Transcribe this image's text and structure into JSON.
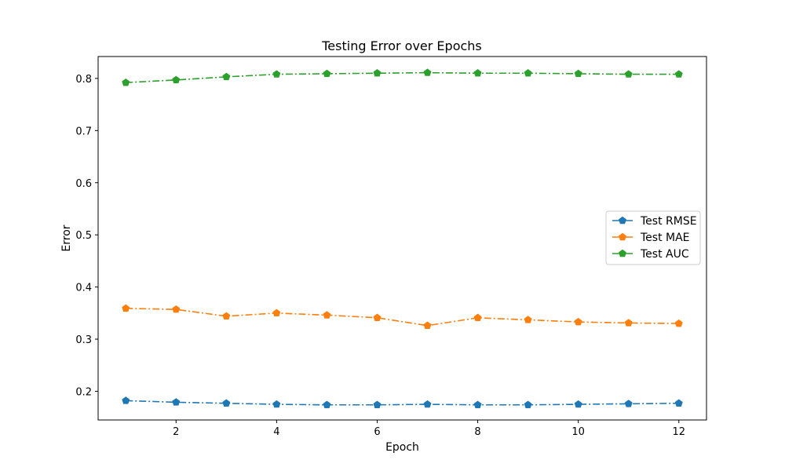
{
  "chart_data": {
    "type": "line",
    "title": "Testing Error over Epochs",
    "xlabel": "Epoch",
    "ylabel": "Error",
    "x": [
      1,
      2,
      3,
      4,
      5,
      6,
      7,
      8,
      9,
      10,
      11,
      12
    ],
    "xlim": [
      0.45,
      12.55
    ],
    "ylim": [
      0.145,
      0.842
    ],
    "x_ticks": [
      2,
      4,
      6,
      8,
      10,
      12
    ],
    "y_ticks": [
      0.2,
      0.3,
      0.4,
      0.5,
      0.6,
      0.7,
      0.8
    ],
    "grid": false,
    "legend_position": "center-right",
    "series": [
      {
        "name": "Test RMSE",
        "color": "#1f77b4",
        "marker": "pentagon",
        "values": [
          0.182,
          0.179,
          0.177,
          0.175,
          0.174,
          0.174,
          0.175,
          0.174,
          0.174,
          0.175,
          0.176,
          0.177
        ]
      },
      {
        "name": "Test MAE",
        "color": "#ff7f0e",
        "marker": "pentagon",
        "values": [
          0.359,
          0.357,
          0.344,
          0.35,
          0.346,
          0.341,
          0.326,
          0.341,
          0.337,
          0.333,
          0.331,
          0.33
        ]
      },
      {
        "name": "Test AUC",
        "color": "#2ca02c",
        "marker": "pentagon",
        "values": [
          0.792,
          0.797,
          0.803,
          0.808,
          0.809,
          0.81,
          0.811,
          0.81,
          0.81,
          0.809,
          0.808,
          0.808
        ]
      }
    ]
  }
}
